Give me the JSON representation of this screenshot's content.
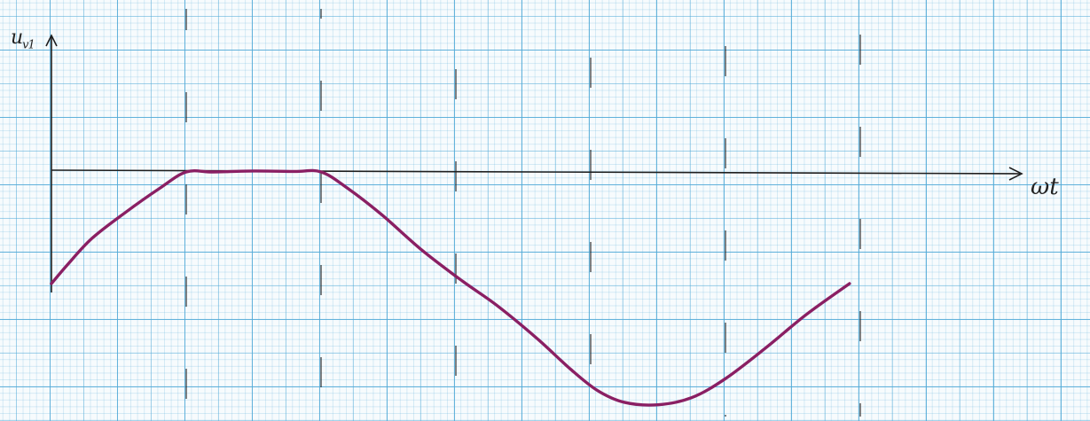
{
  "axes": {
    "y_label": "u",
    "y_label_sub": "v1",
    "x_label": "ωt"
  },
  "colors": {
    "grid": "#52aad7",
    "paper": "#f7fbfd",
    "axis": "#1e1e1e",
    "curve": "#8a1f63"
  },
  "chart_data": {
    "type": "line",
    "x_interval_marks": [
      1,
      2,
      3,
      4,
      5,
      6
    ],
    "ylim": [
      -1,
      0.4
    ],
    "series": [
      {
        "points": [
          [
            0.0,
            -0.47
          ],
          [
            0.12,
            -0.39
          ],
          [
            0.3,
            -0.28
          ],
          [
            0.55,
            -0.17
          ],
          [
            0.8,
            -0.07
          ],
          [
            1.0,
            0.0
          ],
          [
            1.2,
            0.0
          ],
          [
            1.5,
            0.004
          ],
          [
            1.8,
            0.002
          ],
          [
            2.0,
            0.0
          ],
          [
            2.2,
            -0.07
          ],
          [
            2.45,
            -0.18
          ],
          [
            2.75,
            -0.33
          ],
          [
            3.05,
            -0.46
          ],
          [
            3.3,
            -0.56
          ],
          [
            3.6,
            -0.7
          ],
          [
            3.85,
            -0.83
          ],
          [
            4.05,
            -0.92
          ],
          [
            4.25,
            -0.97
          ],
          [
            4.5,
            -0.98
          ],
          [
            4.75,
            -0.95
          ],
          [
            5.0,
            -0.87
          ],
          [
            5.3,
            -0.74
          ],
          [
            5.6,
            -0.6
          ],
          [
            5.92,
            -0.47
          ]
        ]
      }
    ]
  }
}
